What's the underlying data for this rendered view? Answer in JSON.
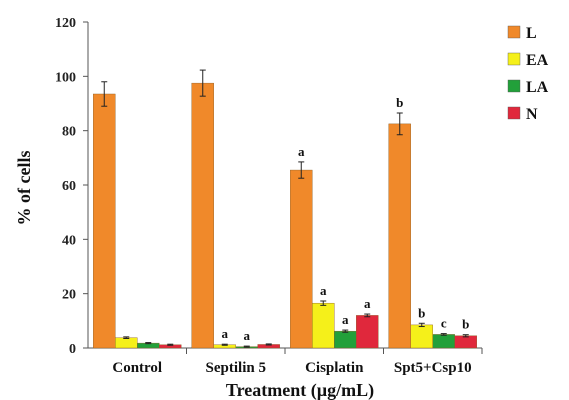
{
  "chart_data": {
    "type": "bar",
    "xlabel": "Treatment (µg/mL)",
    "ylabel": "% of  cells",
    "ylim": [
      0,
      120
    ],
    "yticks": [
      0,
      20,
      40,
      60,
      80,
      100,
      120
    ],
    "categories": [
      "Control",
      "Septilin 5",
      "Cisplatin",
      "Spt5+Csp10"
    ],
    "legend_position": "top-right",
    "series": [
      {
        "name": "L",
        "color": "#F0892A",
        "values": [
          93.5,
          97.5,
          65.5,
          82.5
        ],
        "errors": [
          4.5,
          4.8,
          3.0,
          4.0
        ],
        "labels": [
          "",
          "",
          "a",
          "b"
        ]
      },
      {
        "name": "EA",
        "color": "#F5F01A",
        "values": [
          3.8,
          1.2,
          16.5,
          8.5
        ],
        "errors": [
          0.3,
          0.2,
          0.8,
          0.6
        ],
        "labels": [
          "",
          "a",
          "a",
          "b"
        ]
      },
      {
        "name": "LA",
        "color": "#22A03A",
        "values": [
          1.8,
          0.5,
          6.2,
          5.0
        ],
        "errors": [
          0.2,
          0.2,
          0.4,
          0.3
        ],
        "labels": [
          "",
          "a",
          "a",
          "c"
        ]
      },
      {
        "name": "N",
        "color": "#E0283C",
        "values": [
          1.2,
          1.3,
          12.0,
          4.5
        ],
        "errors": [
          0.2,
          0.2,
          0.5,
          0.4
        ],
        "labels": [
          "",
          "",
          "a",
          "b"
        ]
      }
    ]
  }
}
